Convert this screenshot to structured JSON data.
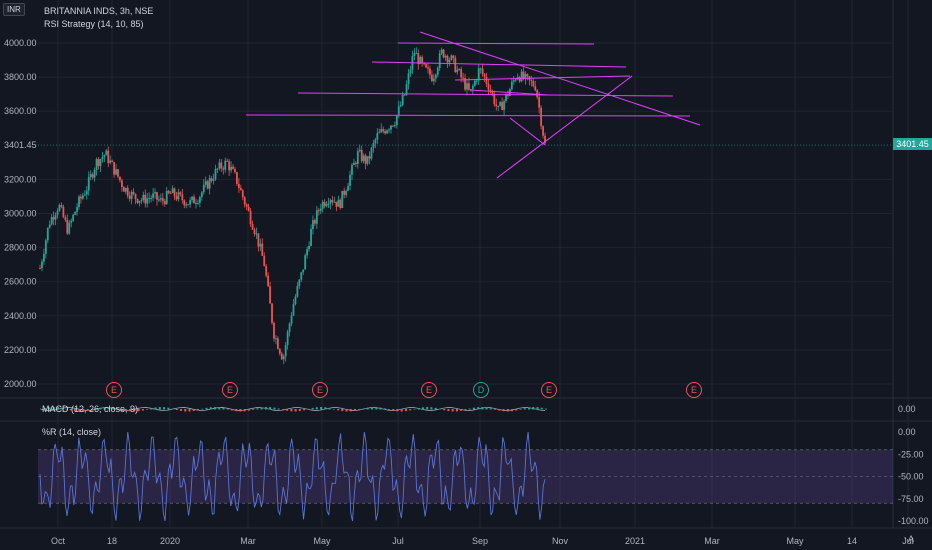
{
  "header": {
    "currency": "INR",
    "symbol_title": "BRITANNIA INDS, 3h, NSE",
    "strategy": "RSI Strategy (14, 10, 85)",
    "macd_label": "MACD (12, 26, close, 9)",
    "wr_label": "%R (14, close)",
    "auto_button": "A"
  },
  "price_pane": {
    "y_ticks": [
      {
        "label": "4000.00",
        "value": 4000
      },
      {
        "label": "3800.00",
        "value": 3800
      },
      {
        "label": "3600.00",
        "value": 3600
      },
      {
        "label": "3200.00",
        "value": 3200
      },
      {
        "label": "3000.00",
        "value": 3000
      },
      {
        "label": "2800.00",
        "value": 2800
      },
      {
        "label": "2600.00",
        "value": 2600
      },
      {
        "label": "2400.00",
        "value": 2400
      },
      {
        "label": "2200.00",
        "value": 2200
      },
      {
        "label": "2000.00",
        "value": 2000
      }
    ],
    "last_price": "3401.45",
    "last_value": 3401.45,
    "events": [
      "E",
      "E",
      "E",
      "E",
      "D",
      "E",
      "E"
    ]
  },
  "macd_pane": {
    "y_tick": "0.00"
  },
  "wr_pane": {
    "y_ticks": [
      {
        "label": "0.00",
        "value": 0
      },
      {
        "label": "-25.00",
        "value": -25
      },
      {
        "label": "-50.00",
        "value": -50
      },
      {
        "label": "-75.00",
        "value": -75
      },
      {
        "label": "-100.00",
        "value": -100
      }
    ]
  },
  "x_axis": [
    "Oct",
    "18",
    "2020",
    "Mar",
    "May",
    "Jul",
    "Sep",
    "Nov",
    "2021",
    "Mar",
    "May",
    "14",
    "Jul"
  ],
  "colors": {
    "up": "#26a69a",
    "down": "#ef5350",
    "trendline": "#e040fb",
    "wr_line": "#5b75d6",
    "wr_band": "#7e57c2"
  },
  "chart_data": {
    "type": "candlestick",
    "title": "BRITANNIA INDS, 3h, NSE",
    "ylim": [
      1950,
      4100
    ],
    "close_series": [
      2680,
      2950,
      3050,
      2900,
      3050,
      3150,
      3300,
      3350,
      3250,
      3150,
      3100,
      3080,
      3100,
      3070,
      3120,
      3090,
      3060,
      3100,
      3180,
      3260,
      3300,
      3200,
      3050,
      2900,
      2700,
      2300,
      2150,
      2450,
      2650,
      2900,
      3050,
      3100,
      3050,
      3200,
      3350,
      3300,
      3450,
      3500,
      3550,
      3700,
      3950,
      3850,
      3800,
      3950,
      3900,
      3800,
      3700,
      3850,
      3750,
      3600,
      3700,
      3820,
      3780,
      3750,
      3401
    ]
  }
}
